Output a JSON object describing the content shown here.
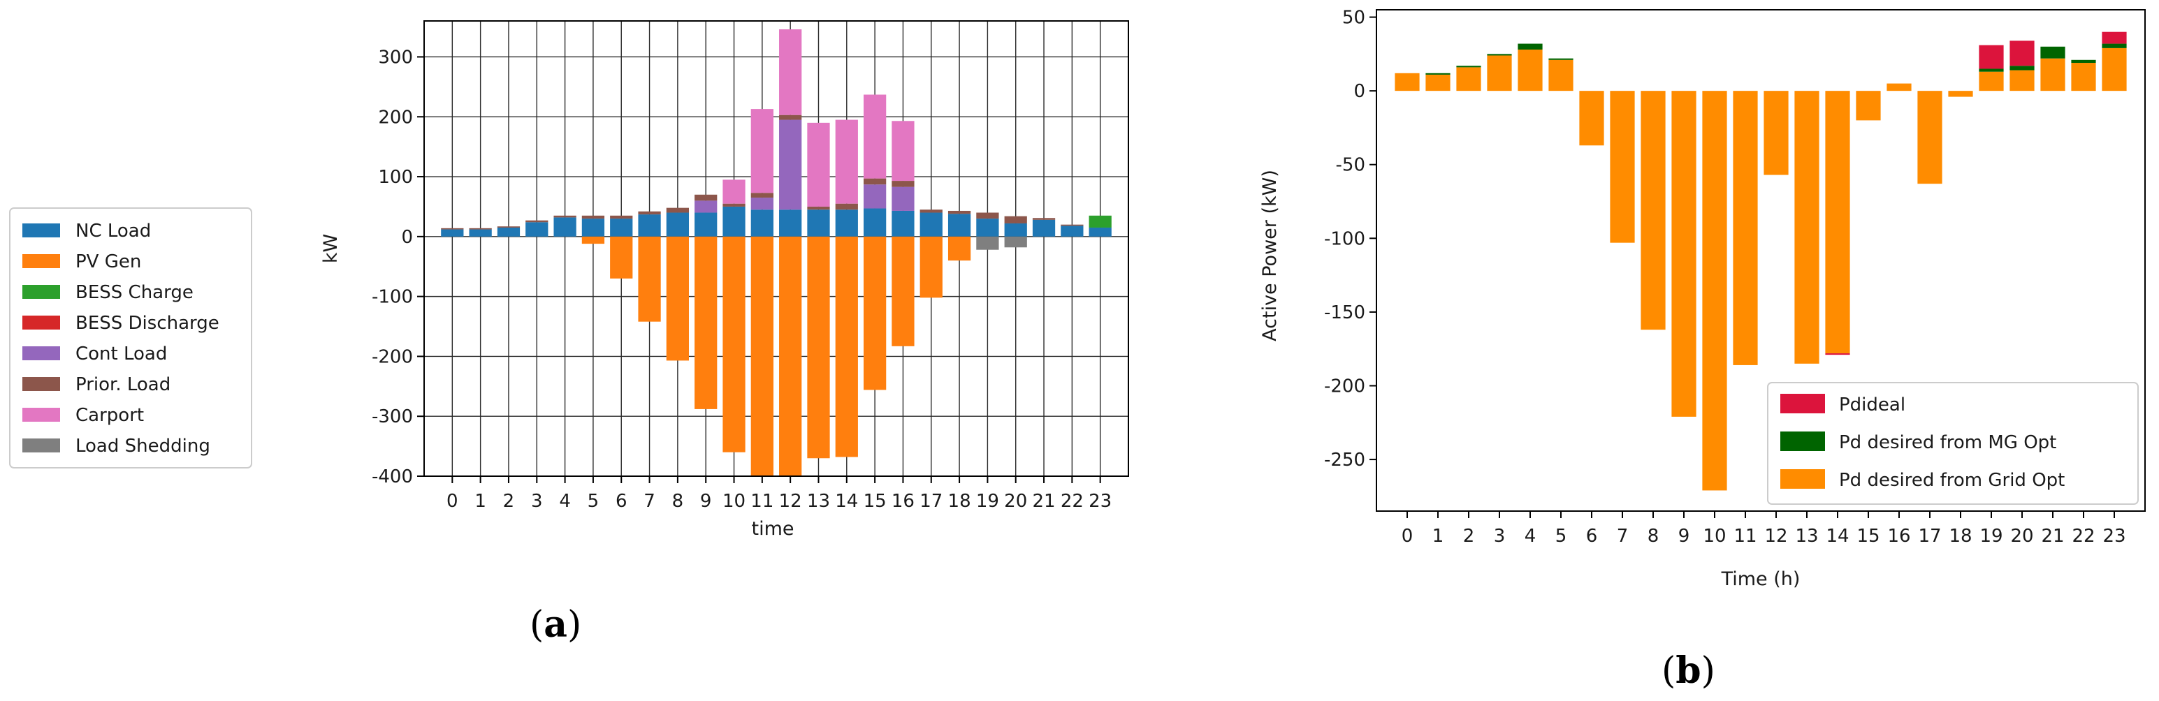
{
  "chart_data": [
    {
      "panel": "(a)",
      "caption_letter": "a",
      "type": "bar",
      "stacked": true,
      "xlabel": "time",
      "ylabel": "kW",
      "ylim": [
        -400,
        360
      ],
      "yticks": [
        -400,
        -300,
        -200,
        -100,
        0,
        100,
        200,
        300
      ],
      "grid": true,
      "legend_position": "outside-left",
      "categories": [
        "0",
        "1",
        "2",
        "3",
        "4",
        "5",
        "6",
        "7",
        "8",
        "9",
        "10",
        "11",
        "12",
        "13",
        "14",
        "15",
        "16",
        "17",
        "18",
        "19",
        "20",
        "21",
        "22",
        "23"
      ],
      "series": [
        {
          "name": "NC Load",
          "color": "#1f77b4",
          "values": [
            12,
            12,
            15,
            24,
            32,
            30,
            30,
            37,
            40,
            40,
            50,
            45,
            45,
            45,
            45,
            47,
            43,
            40,
            38,
            30,
            22,
            28,
            18,
            15
          ]
        },
        {
          "name": "PV Gen",
          "color": "#ff7f0e",
          "values": [
            0,
            0,
            0,
            0,
            0,
            -12,
            -70,
            -142,
            -207,
            -288,
            -360,
            -400,
            -400,
            -370,
            -368,
            -256,
            -183,
            -102,
            -40,
            0,
            0,
            0,
            0,
            0
          ]
        },
        {
          "name": "BESS Charge",
          "color": "#2ca02c",
          "values": [
            0,
            0,
            0,
            0,
            0,
            0,
            0,
            0,
            0,
            0,
            0,
            0,
            0,
            0,
            0,
            0,
            0,
            0,
            0,
            0,
            0,
            0,
            0,
            20
          ]
        },
        {
          "name": "BESS Discharge",
          "color": "#d62728",
          "values": [
            0,
            0,
            0,
            0,
            0,
            0,
            0,
            0,
            0,
            0,
            0,
            0,
            0,
            0,
            0,
            0,
            0,
            0,
            0,
            0,
            0,
            0,
            0,
            0
          ]
        },
        {
          "name": "Cont Load",
          "color": "#9467bd",
          "values": [
            0,
            0,
            0,
            0,
            0,
            0,
            0,
            0,
            0,
            20,
            0,
            20,
            150,
            0,
            0,
            40,
            40,
            0,
            0,
            0,
            0,
            0,
            0,
            0
          ]
        },
        {
          "name": "Prior. Load",
          "color": "#8c564b",
          "values": [
            2,
            2,
            2,
            3,
            3,
            5,
            5,
            5,
            8,
            10,
            5,
            8,
            8,
            5,
            10,
            10,
            10,
            5,
            5,
            10,
            12,
            3,
            2,
            0
          ]
        },
        {
          "name": "Carport",
          "color": "#e377c2",
          "values": [
            0,
            0,
            0,
            0,
            0,
            0,
            0,
            0,
            0,
            0,
            40,
            140,
            143,
            140,
            140,
            140,
            100,
            0,
            0,
            0,
            0,
            0,
            0,
            0
          ]
        },
        {
          "name": "Load Shedding",
          "color": "#7f7f7f",
          "values": [
            0,
            0,
            0,
            0,
            0,
            0,
            0,
            0,
            0,
            0,
            0,
            0,
            0,
            0,
            0,
            0,
            0,
            0,
            0,
            -22,
            -18,
            0,
            0,
            0
          ]
        }
      ]
    },
    {
      "panel": "(b)",
      "caption_letter": "b",
      "type": "bar",
      "stacked": true,
      "xlabel": "Time (h)",
      "ylabel": "Active Power (kW)",
      "ylim": [
        -285,
        55
      ],
      "yticks": [
        -250,
        -200,
        -150,
        -100,
        -50,
        0,
        50
      ],
      "grid": false,
      "legend_position": "lower-right",
      "categories": [
        "0",
        "1",
        "2",
        "3",
        "4",
        "5",
        "6",
        "7",
        "8",
        "9",
        "10",
        "11",
        "12",
        "13",
        "14",
        "15",
        "16",
        "17",
        "18",
        "19",
        "20",
        "21",
        "22",
        "23"
      ],
      "series": [
        {
          "name": "Pd desired from Grid Opt",
          "color": "#ff8c00",
          "values": [
            12,
            11,
            16,
            24,
            28,
            21,
            -37,
            -103,
            -162,
            -221,
            -271,
            -186,
            -57,
            -185,
            -178,
            -20,
            5,
            -63,
            -4,
            13,
            14,
            22,
            19,
            29
          ]
        },
        {
          "name": "Pd desired from MG Opt",
          "color": "#006400",
          "values": [
            0,
            1,
            1,
            1,
            4,
            1,
            0,
            0,
            0,
            0,
            0,
            0,
            0,
            0,
            0,
            0,
            0,
            0,
            0,
            2,
            3,
            8,
            2,
            3
          ]
        },
        {
          "name": "Pdideal",
          "color": "#dc143c",
          "values": [
            0,
            0,
            0,
            0,
            0,
            0,
            0,
            0,
            0,
            0,
            0,
            0,
            0,
            0,
            -1,
            0,
            0,
            0,
            0,
            16,
            17,
            0,
            0,
            8
          ]
        }
      ],
      "legend_order": [
        "Pdideal",
        "Pd desired from MG Opt",
        "Pd desired from Grid Opt"
      ]
    }
  ]
}
